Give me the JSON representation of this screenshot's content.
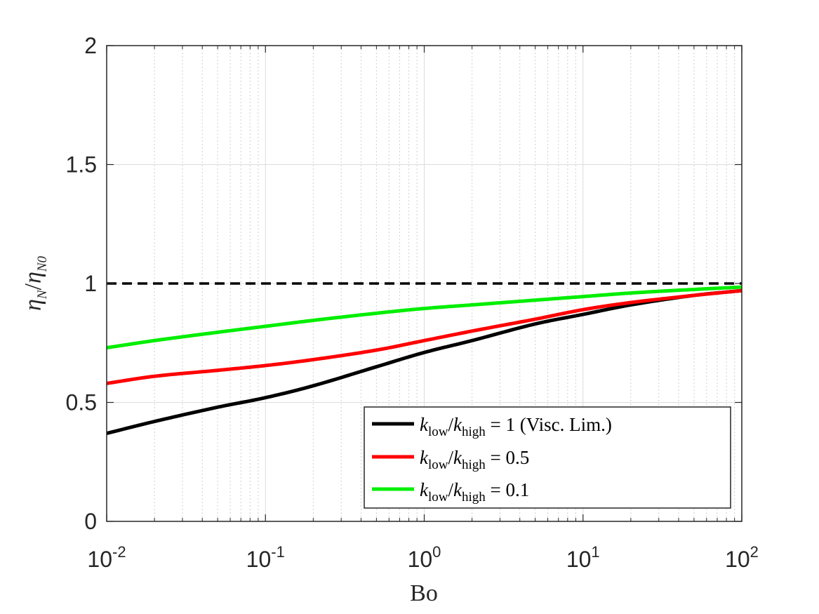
{
  "chart_data": {
    "type": "line",
    "xscale": "log",
    "xlim": [
      0.01,
      100
    ],
    "ylim": [
      0,
      2
    ],
    "grid": true,
    "xlabel": "Bo",
    "ylabel": {
      "base1": "η",
      "sub1": "N",
      "slash": "/",
      "base2": "η",
      "sub2": "N0"
    },
    "x_ticks": [
      {
        "base": "10",
        "exp": "-2",
        "value": 0.01
      },
      {
        "base": "10",
        "exp": "-1",
        "value": 0.1
      },
      {
        "base": "10",
        "exp": "0",
        "value": 1
      },
      {
        "base": "10",
        "exp": "1",
        "value": 10
      },
      {
        "base": "10",
        "exp": "2",
        "value": 100
      }
    ],
    "y_ticks": [
      {
        "label": "0",
        "value": 0
      },
      {
        "label": "0.5",
        "value": 0.5
      },
      {
        "label": "1",
        "value": 1
      },
      {
        "label": "1.5",
        "value": 1.5
      },
      {
        "label": "2",
        "value": 2
      }
    ],
    "reference_line": {
      "y": 1,
      "style": "dashed",
      "color": "#000000"
    },
    "x": [
      0.01,
      0.02,
      0.05,
      0.1,
      0.2,
      0.5,
      1,
      2,
      5,
      10,
      20,
      50,
      100
    ],
    "series": [
      {
        "name": "k_low/k_high = 1 (Visc. Lim.)",
        "color": "#000000",
        "values": [
          0.37,
          0.42,
          0.48,
          0.52,
          0.57,
          0.65,
          0.71,
          0.76,
          0.83,
          0.87,
          0.91,
          0.95,
          0.97
        ]
      },
      {
        "name": "k_low/k_high = 0.5",
        "color": "#ff0000",
        "values": [
          0.58,
          0.61,
          0.635,
          0.655,
          0.68,
          0.72,
          0.76,
          0.8,
          0.85,
          0.89,
          0.92,
          0.95,
          0.97
        ]
      },
      {
        "name": "k_low/k_high = 0.1",
        "color": "#00ee00",
        "values": [
          0.73,
          0.76,
          0.795,
          0.82,
          0.845,
          0.875,
          0.895,
          0.91,
          0.93,
          0.945,
          0.96,
          0.975,
          0.985
        ]
      }
    ],
    "legend": {
      "placement": "bottom-right",
      "entries": [
        {
          "k1": "k",
          "sub1": "low",
          "slash": "/",
          "k2": "k",
          "sub2": "high",
          "rest": " = 1 (Visc. Lim.)"
        },
        {
          "k1": "k",
          "sub1": "low",
          "slash": "/",
          "k2": "k",
          "sub2": "high",
          "rest": " = 0.5"
        },
        {
          "k1": "k",
          "sub1": "low",
          "slash": "/",
          "k2": "k",
          "sub2": "high",
          "rest": " = 0.1"
        }
      ]
    }
  }
}
